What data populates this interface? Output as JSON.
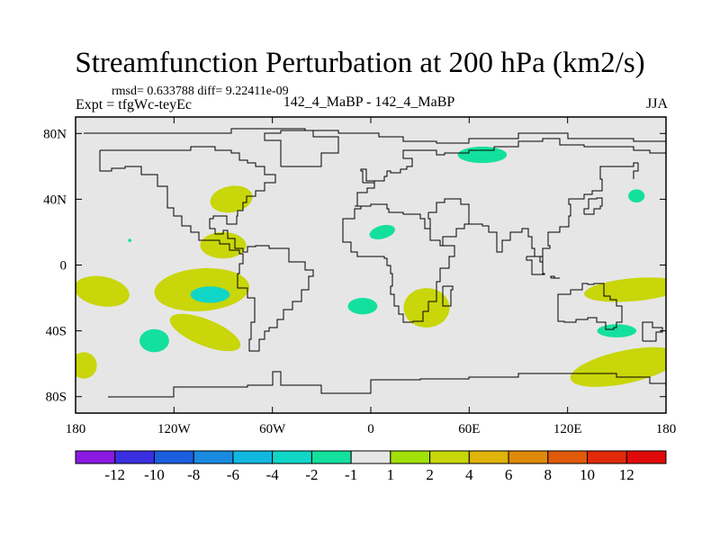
{
  "chart_data": {
    "type": "heatmap",
    "title": "Streamfunction Perturbation at 200 hPa (km2/s)",
    "stats_line": "rmsd= 0.633788 diff= 9.22411e-09",
    "left_label": "Expt = tfgWc-teyEc",
    "center_label": "142_4_MaBP - 142_4_MaBP",
    "right_label": "JJA",
    "xlim": [
      -180,
      180
    ],
    "ylim": [
      -90,
      90
    ],
    "x_ticks": [
      {
        "value": -180,
        "label": "180"
      },
      {
        "value": -120,
        "label": "120W"
      },
      {
        "value": -60,
        "label": "60W"
      },
      {
        "value": 0,
        "label": "0"
      },
      {
        "value": 60,
        "label": "60E"
      },
      {
        "value": 120,
        "label": "120E"
      },
      {
        "value": 180,
        "label": "180"
      }
    ],
    "y_ticks": [
      {
        "value": 80,
        "label": "80N"
      },
      {
        "value": 40,
        "label": "40N"
      },
      {
        "value": 0,
        "label": "0"
      },
      {
        "value": -40,
        "label": "40S"
      },
      {
        "value": -80,
        "label": "80S"
      }
    ],
    "colorbar": {
      "levels": [
        "-12",
        "-10",
        "-8",
        "-6",
        "-4",
        "-2",
        "-1",
        "1",
        "2",
        "4",
        "6",
        "8",
        "10",
        "12"
      ],
      "colors": [
        "#8a1ae0",
        "#3a2fe0",
        "#1a5fe0",
        "#1a8be0",
        "#10b8e0",
        "#10d6c8",
        "#14e09e",
        "#e6e6e6",
        "#a2e00a",
        "#c8d60a",
        "#e0b40a",
        "#e08a0a",
        "#e05a0a",
        "#e02a0a",
        "#e00a0a"
      ]
    },
    "background_color": "#e6e6e6",
    "regions": [
      {
        "lon": -103,
        "lat": -15,
        "rx": 29,
        "ry": 13,
        "value": 2,
        "rotation": -4
      },
      {
        "lon": -98,
        "lat": -18,
        "rx": 12,
        "ry": 5,
        "value": -3,
        "rotation": 0
      },
      {
        "lon": -101,
        "lat": -41,
        "rx": 23,
        "ry": 8,
        "value": 2,
        "rotation": 22
      },
      {
        "lon": -132,
        "lat": -46,
        "rx": 9,
        "ry": 7,
        "value": -2,
        "rotation": 0
      },
      {
        "lon": -85,
        "lat": 40,
        "rx": 13,
        "ry": 8,
        "value": 2,
        "rotation": -10
      },
      {
        "lon": -90,
        "lat": 12,
        "rx": 14,
        "ry": 8,
        "value": 2,
        "rotation": 0
      },
      {
        "lon": -164,
        "lat": -16,
        "rx": 17,
        "ry": 9,
        "value": 2,
        "rotation": 10
      },
      {
        "lon": -175,
        "lat": -61,
        "rx": 8,
        "ry": 8,
        "value": 2,
        "rotation": 0
      },
      {
        "lon": -5,
        "lat": -25,
        "rx": 9,
        "ry": 5,
        "value": -2,
        "rotation": 0
      },
      {
        "lon": 34,
        "lat": -26,
        "rx": 14,
        "ry": 12,
        "value": 2,
        "rotation": 0
      },
      {
        "lon": 7,
        "lat": 20,
        "rx": 8,
        "ry": 4,
        "value": -2,
        "rotation": -15
      },
      {
        "lon": 68,
        "lat": 67,
        "rx": 15,
        "ry": 5,
        "value": -2,
        "rotation": 0
      },
      {
        "lon": 160,
        "lat": -15,
        "rx": 30,
        "ry": 7,
        "value": 2,
        "rotation": -5
      },
      {
        "lon": 150,
        "lat": -40,
        "rx": 12,
        "ry": 4,
        "value": -2,
        "rotation": 0
      },
      {
        "lon": 155,
        "lat": -62,
        "rx": 34,
        "ry": 10,
        "value": 2,
        "rotation": -12
      },
      {
        "lon": 162,
        "lat": 42,
        "rx": 5,
        "ry": 4,
        "value": -2,
        "rotation": 0
      },
      {
        "lon": -147,
        "lat": 15,
        "rx": 1,
        "ry": 1,
        "value": -2,
        "rotation": 0
      }
    ],
    "coastlines": [
      [
        [
          -175,
          80
        ],
        [
          -100,
          80
        ],
        [
          -85,
          83
        ],
        [
          -40,
          82
        ],
        [
          -20,
          80
        ],
        [
          0,
          80
        ],
        [
          5,
          78
        ],
        [
          20,
          75
        ],
        [
          40,
          74
        ],
        [
          60,
          77
        ],
        [
          90,
          80
        ],
        [
          120,
          77
        ],
        [
          160,
          75
        ],
        [
          180,
          75
        ]
      ],
      [
        [
          -165,
          70
        ],
        [
          -140,
          70
        ],
        [
          -110,
          72
        ],
        [
          -95,
          70
        ],
        [
          -85,
          68
        ],
        [
          -80,
          64
        ],
        [
          -75,
          62
        ],
        [
          -70,
          60
        ],
        [
          -65,
          55
        ],
        [
          -58,
          50
        ],
        [
          -65,
          45
        ],
        [
          -70,
          42
        ],
        [
          -76,
          38
        ],
        [
          -78,
          33
        ],
        [
          -81,
          30
        ],
        [
          -82,
          25
        ],
        [
          -88,
          30
        ],
        [
          -96,
          28
        ],
        [
          -98,
          22
        ],
        [
          -95,
          19
        ],
        [
          -90,
          21
        ],
        [
          -87,
          16
        ],
        [
          -83,
          10
        ],
        [
          -78,
          8
        ],
        [
          -75,
          11
        ],
        [
          -70,
          12
        ],
        [
          -62,
          10
        ],
        [
          -50,
          2
        ],
        [
          -40,
          -3
        ],
        [
          -35,
          -7
        ],
        [
          -38,
          -15
        ],
        [
          -42,
          -22
        ],
        [
          -48,
          -27
        ],
        [
          -53,
          -33
        ],
        [
          -57,
          -38
        ],
        [
          -62,
          -40
        ],
        [
          -65,
          -45
        ],
        [
          -68,
          -52
        ],
        [
          -72,
          -52
        ],
        [
          -74,
          -45
        ],
        [
          -73,
          -35
        ],
        [
          -71,
          -20
        ],
        [
          -75,
          -14
        ],
        [
          -81,
          -5
        ],
        [
          -80,
          1
        ],
        [
          -78,
          7
        ],
        [
          -80,
          9
        ],
        [
          -86,
          13
        ],
        [
          -92,
          15
        ],
        [
          -105,
          20
        ],
        [
          -110,
          24
        ],
        [
          -115,
          30
        ],
        [
          -120,
          35
        ],
        [
          -124,
          40
        ],
        [
          -124,
          48
        ],
        [
          -130,
          55
        ],
        [
          -140,
          60
        ],
        [
          -150,
          59
        ],
        [
          -158,
          57
        ],
        [
          -165,
          62
        ],
        [
          -165,
          70
        ]
      ],
      [
        [
          -55,
          60
        ],
        [
          -45,
          60
        ],
        [
          -30,
          68
        ],
        [
          -20,
          72
        ],
        [
          -20,
          78
        ],
        [
          -35,
          82
        ],
        [
          -55,
          80
        ],
        [
          -65,
          76
        ],
        [
          -55,
          70
        ],
        [
          -55,
          60
        ]
      ],
      [
        [
          -10,
          36
        ],
        [
          -8,
          44
        ],
        [
          -2,
          47
        ],
        [
          2,
          51
        ],
        [
          8,
          54
        ],
        [
          10,
          57
        ],
        [
          12,
          56
        ],
        [
          18,
          58
        ],
        [
          22,
          60
        ],
        [
          25,
          65
        ],
        [
          20,
          70
        ],
        [
          30,
          70
        ],
        [
          40,
          67
        ],
        [
          45,
          68
        ],
        [
          60,
          70
        ],
        [
          75,
          72
        ],
        [
          90,
          75
        ],
        [
          105,
          77
        ],
        [
          115,
          73
        ],
        [
          130,
          72
        ],
        [
          140,
          72
        ],
        [
          160,
          70
        ],
        [
          170,
          68
        ],
        [
          180,
          67
        ]
      ],
      [
        [
          -10,
          36
        ],
        [
          -6,
          34
        ],
        [
          -10,
          28
        ],
        [
          -17,
          21
        ],
        [
          -17,
          14
        ],
        [
          -12,
          8
        ],
        [
          -8,
          5
        ],
        [
          0,
          5
        ],
        [
          8,
          4
        ],
        [
          10,
          0
        ],
        [
          12,
          -5
        ],
        [
          13,
          -13
        ],
        [
          12,
          -18
        ],
        [
          14,
          -25
        ],
        [
          17,
          -30
        ],
        [
          20,
          -35
        ],
        [
          26,
          -34
        ],
        [
          32,
          -28
        ],
        [
          35,
          -22
        ],
        [
          40,
          -15
        ],
        [
          40,
          -10
        ],
        [
          42,
          -2
        ],
        [
          48,
          5
        ],
        [
          51,
          12
        ],
        [
          44,
          12
        ],
        [
          42,
          15
        ],
        [
          36,
          22
        ],
        [
          33,
          28
        ],
        [
          30,
          31
        ],
        [
          20,
          32
        ],
        [
          11,
          34
        ],
        [
          10,
          37
        ],
        [
          0,
          36
        ],
        [
          -6,
          36
        ],
        [
          -10,
          36
        ]
      ],
      [
        [
          35,
          32
        ],
        [
          40,
          38
        ],
        [
          45,
          40
        ],
        [
          55,
          37
        ],
        [
          60,
          25
        ],
        [
          57,
          22
        ],
        [
          52,
          17
        ],
        [
          44,
          12
        ],
        [
          42,
          15
        ],
        [
          36,
          28
        ],
        [
          35,
          32
        ]
      ],
      [
        [
          60,
          25
        ],
        [
          68,
          24
        ],
        [
          72,
          20
        ],
        [
          77,
          8
        ],
        [
          80,
          15
        ],
        [
          85,
          20
        ],
        [
          92,
          22
        ],
        [
          96,
          17
        ],
        [
          98,
          10
        ],
        [
          100,
          5
        ],
        [
          103,
          2
        ],
        [
          105,
          10
        ],
        [
          109,
          12
        ],
        [
          108,
          20
        ],
        [
          115,
          23
        ],
        [
          121,
          30
        ],
        [
          122,
          37
        ],
        [
          121,
          40
        ],
        [
          126,
          40
        ],
        [
          130,
          43
        ],
        [
          135,
          45
        ],
        [
          141,
          52
        ],
        [
          140,
          60
        ],
        [
          150,
          60
        ],
        [
          160,
          62
        ],
        [
          163,
          57
        ],
        [
          160,
          52
        ]
      ],
      [
        [
          114,
          -22
        ],
        [
          114,
          -34
        ],
        [
          118,
          -35
        ],
        [
          125,
          -33
        ],
        [
          132,
          -32
        ],
        [
          138,
          -35
        ],
        [
          143,
          -39
        ],
        [
          148,
          -38
        ],
        [
          150,
          -35
        ],
        [
          153,
          -30
        ],
        [
          153,
          -25
        ],
        [
          150,
          -21
        ],
        [
          146,
          -19
        ],
        [
          142,
          -11
        ],
        [
          136,
          -12
        ],
        [
          132,
          -11
        ],
        [
          129,
          -15
        ],
        [
          122,
          -18
        ],
        [
          114,
          -22
        ]
      ],
      [
        [
          -160,
          -80
        ],
        [
          -120,
          -74
        ],
        [
          -75,
          -73
        ],
        [
          -60,
          -65
        ],
        [
          -55,
          -73
        ],
        [
          -30,
          -78
        ],
        [
          0,
          -70
        ],
        [
          30,
          -69
        ],
        [
          60,
          -68
        ],
        [
          90,
          -66
        ],
        [
          120,
          -66
        ],
        [
          150,
          -68
        ],
        [
          170,
          -72
        ],
        [
          180,
          -78
        ]
      ],
      [
        [
          44,
          -13
        ],
        [
          50,
          -15
        ],
        [
          49,
          -25
        ],
        [
          44,
          -24
        ],
        [
          44,
          -13
        ]
      ],
      [
        [
          166,
          -46
        ],
        [
          174,
          -41
        ],
        [
          178,
          -38
        ],
        [
          172,
          -35
        ],
        [
          166,
          -46
        ]
      ],
      [
        [
          -5,
          50
        ],
        [
          2,
          51
        ],
        [
          -3,
          58
        ],
        [
          -6,
          57
        ],
        [
          -5,
          50
        ]
      ],
      [
        [
          95,
          5
        ],
        [
          105,
          -5
        ],
        [
          106,
          -6
        ],
        [
          98,
          3
        ],
        [
          95,
          5
        ]
      ],
      [
        [
          110,
          -8
        ],
        [
          115,
          -8
        ],
        [
          112,
          -7
        ],
        [
          110,
          -8
        ]
      ],
      [
        [
          130,
          31
        ],
        [
          136,
          34
        ],
        [
          140,
          36
        ],
        [
          141,
          41
        ],
        [
          138,
          40
        ],
        [
          133,
          34
        ],
        [
          130,
          31
        ]
      ]
    ]
  }
}
